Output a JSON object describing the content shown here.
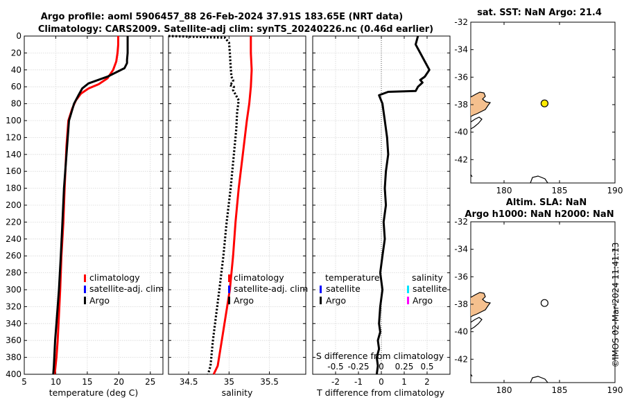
{
  "title": {
    "line1": "Argo profile: aoml 5906457_88 26-Feb-2024 37.91S 183.65E (NRT data)",
    "line2": "Climatology: CARS2009. Satellite-adj clim: synTS_20240226.nc (0.46d earlier)"
  },
  "depth_axis": {
    "ticks": [
      "0",
      "20",
      "40",
      "60",
      "80",
      "100",
      "120",
      "140",
      "160",
      "180",
      "200",
      "220",
      "240",
      "260",
      "280",
      "300",
      "320",
      "340",
      "360",
      "380",
      "400"
    ]
  },
  "colors": {
    "climatology": "#ff0000",
    "satellite": "#0000ff",
    "argo": "#000000",
    "sal_satellite": "#00e5ff",
    "sal_argo": "#ff00ff",
    "land": "#f5c08e",
    "marker": "#ffeb00"
  },
  "chart_data": [
    {
      "type": "line",
      "name": "temperature",
      "xlabel": "temperature (deg C)",
      "xlim": [
        5,
        27
      ],
      "ylim": [
        0,
        400
      ],
      "y_reversed": true,
      "xticks": [
        "5",
        "10",
        "15",
        "20",
        "25"
      ],
      "series": [
        {
          "name": "climatology",
          "color": "#ff0000",
          "x": [
            19.9,
            19.9,
            19.8,
            19.6,
            19.1,
            18.2,
            16.8,
            15.2,
            14.0,
            13.2,
            12.6,
            12.0,
            11.7,
            11.4,
            11.2,
            10.9,
            10.7,
            10.5,
            10.3,
            10.1,
            9.9,
            9.8
          ],
          "y": [
            0,
            10,
            20,
            30,
            40,
            50,
            57,
            62,
            68,
            76,
            86,
            100,
            130,
            180,
            220,
            260,
            300,
            330,
            360,
            380,
            395,
            400
          ]
        },
        {
          "name": "Argo",
          "color": "#000000",
          "dotted": false,
          "x": [
            21.4,
            21.4,
            21.4,
            21.3,
            21.3,
            20.9,
            18.2,
            15.2,
            14.2,
            13.6,
            12.9,
            12.1,
            11.8,
            11.3,
            11.0,
            10.8,
            10.5,
            10.2,
            9.9,
            9.7,
            9.6
          ],
          "y": [
            0,
            10,
            20,
            28,
            32,
            38,
            48,
            56,
            62,
            70,
            80,
            100,
            130,
            180,
            230,
            260,
            300,
            330,
            360,
            390,
            400
          ]
        }
      ],
      "legend": [
        "climatology",
        "satellite-adj. clim",
        "Argo"
      ]
    },
    {
      "type": "line",
      "name": "salinity",
      "xlabel": "salinity",
      "xlim": [
        34.25,
        35.95
      ],
      "ylim": [
        0,
        400
      ],
      "y_reversed": true,
      "xticks": [
        "34.5",
        "35",
        "35.5"
      ],
      "series": [
        {
          "name": "climatology",
          "color": "#ff0000",
          "x": [
            35.27,
            35.27,
            35.28,
            35.27,
            35.25,
            35.22,
            35.17,
            35.12,
            35.08,
            35.05,
            35.01,
            34.96,
            34.91,
            34.86,
            34.81
          ],
          "y": [
            0,
            20,
            40,
            60,
            80,
            100,
            140,
            180,
            220,
            260,
            300,
            330,
            360,
            390,
            400
          ]
        },
        {
          "name": "Argo",
          "color": "#000000",
          "dotted": true,
          "x": [
            34.25,
            34.6,
            34.95,
            35.0,
            35.01,
            35.02,
            35.03,
            35.05,
            35.05,
            35.03,
            35.01,
            35.06,
            35.05,
            35.12,
            35.1,
            35.09,
            35.06,
            35.02,
            34.97,
            34.93,
            34.88,
            34.84,
            34.8,
            34.77,
            34.74
          ],
          "y": [
            0,
            1,
            2,
            8,
            20,
            36,
            48,
            52,
            54,
            56,
            58,
            60,
            64,
            76,
            90,
            110,
            140,
            180,
            220,
            260,
            300,
            330,
            360,
            390,
            400
          ]
        }
      ],
      "legend": [
        "climatology",
        "satellite-adj. clim",
        "Argo"
      ]
    },
    {
      "type": "line",
      "name": "difference",
      "xlabel": "T difference from climatology",
      "xlim": [
        -3,
        3.0
      ],
      "ylim": [
        0,
        400
      ],
      "y_reversed": true,
      "xticks": [
        "-2",
        "-1",
        "0",
        "1",
        "2"
      ],
      "top_axis_label": "S difference from climatology",
      "top_ticks": [
        "-0.5",
        "-0.25",
        "0",
        "0.25",
        "0.5"
      ],
      "series": [
        {
          "name": "T difference (Argo - clim)",
          "color": "#000000",
          "x": [
            1.6,
            1.5,
            1.7,
            1.9,
            2.1,
            1.9,
            1.7,
            1.8,
            1.6,
            1.5,
            0.3,
            -0.1,
            0.05,
            0.15,
            0.25,
            0.3,
            0.2,
            0.15,
            0.2,
            0.1,
            0.15,
            0.05,
            -0.05,
            0.05,
            -0.05,
            -0.1,
            -0.05,
            -0.15,
            -0.1,
            -0.2,
            -0.15,
            -0.2
          ],
          "y": [
            0,
            10,
            20,
            30,
            40,
            48,
            52,
            55,
            60,
            65,
            66,
            70,
            80,
            100,
            120,
            140,
            160,
            180,
            200,
            220,
            240,
            260,
            280,
            300,
            320,
            340,
            350,
            360,
            370,
            380,
            390,
            400
          ]
        }
      ],
      "legend_left_heading": "temperature",
      "legend_right_heading": "salinity",
      "legend_left": [
        "satellite",
        "Argo"
      ],
      "legend_right": [
        "satellite",
        "Argo"
      ]
    },
    {
      "type": "scatter",
      "name": "sst-map",
      "title": "sat. SST: NaN Argo: 21.4",
      "xlim": [
        177,
        190
      ],
      "ylim": [
        -43.7,
        -32
      ],
      "xticks": [
        "180",
        "185",
        "190"
      ],
      "yticks": [
        "-32",
        "-34",
        "-36",
        "-38",
        "-40",
        "-42"
      ],
      "points": [
        {
          "lon": 183.65,
          "lat": -37.91,
          "filled": true
        }
      ]
    },
    {
      "type": "scatter",
      "name": "sla-map",
      "title_line1": "Altim. SLA: NaN",
      "title_line2": "Argo h1000: NaN h2000: NaN",
      "xlim": [
        177,
        190
      ],
      "ylim": [
        -43.7,
        -32
      ],
      "xticks": [
        "180",
        "185",
        "190"
      ],
      "yticks": [
        "-32",
        "-34",
        "-36",
        "-38",
        "-40",
        "-42"
      ],
      "points": [
        {
          "lon": 183.65,
          "lat": -37.91,
          "filled": false
        }
      ]
    }
  ],
  "stamp": "©IMOS 02-Mar-2024 11:41:13"
}
